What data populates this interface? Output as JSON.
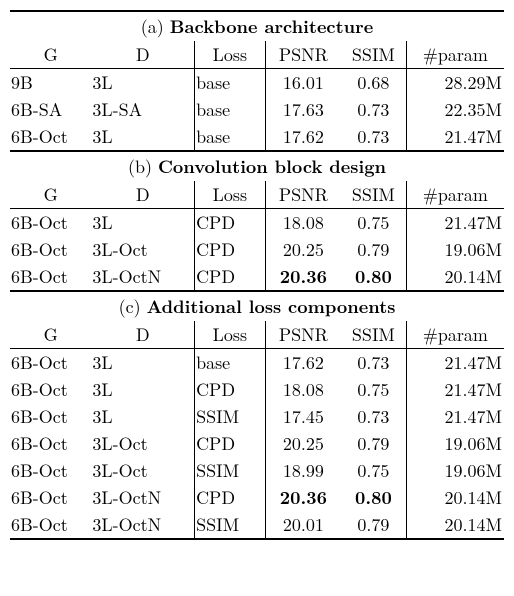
{
  "sections": {
    "a": {
      "label": "(a)",
      "title": "Backbone architecture"
    },
    "b": {
      "label": "(b)",
      "title": "Convolution block design"
    },
    "c": {
      "label": "(c)",
      "title": "Additional loss components"
    }
  },
  "headers": {
    "g": "G",
    "d": "D",
    "loss": "Loss",
    "psnr": "PSNR",
    "ssim": "SSIM",
    "param": "#param"
  },
  "rows_a": [
    {
      "g": "9B",
      "d": "3L",
      "loss": "base",
      "psnr": "16.01",
      "ssim": "0.68",
      "param": "28.29M"
    },
    {
      "g": "6B-SA",
      "d": "3L-SA",
      "loss": "base",
      "psnr": "17.63",
      "ssim": "0.73",
      "param": "22.35M"
    },
    {
      "g": "6B-Oct",
      "d": "3L",
      "loss": "base",
      "psnr": "17.62",
      "ssim": "0.73",
      "param": "21.47M"
    }
  ],
  "rows_b": [
    {
      "g": "6B-Oct",
      "d": "3L",
      "loss": "CPD",
      "psnr": "18.08",
      "ssim": "0.75",
      "param": "21.47M"
    },
    {
      "g": "6B-Oct",
      "d": "3L-Oct",
      "loss": "CPD",
      "psnr": "20.25",
      "ssim": "0.79",
      "param": "19.06M"
    },
    {
      "g": "6B-Oct",
      "d": "3L-OctN",
      "loss": "CPD",
      "psnr": "20.36",
      "ssim": "0.80",
      "param": "20.14M",
      "bold": true
    }
  ],
  "rows_c": [
    {
      "g": "6B-Oct",
      "d": "3L",
      "loss": "base",
      "psnr": "17.62",
      "ssim": "0.73",
      "param": "21.47M"
    },
    {
      "g": "6B-Oct",
      "d": "3L",
      "loss": "CPD",
      "psnr": "18.08",
      "ssim": "0.75",
      "param": "21.47M"
    },
    {
      "g": "6B-Oct",
      "d": "3L",
      "loss": "SSIM",
      "psnr": "17.45",
      "ssim": "0.73",
      "param": "21.47M"
    },
    {
      "g": "6B-Oct",
      "d": "3L-Oct",
      "loss": "CPD",
      "psnr": "20.25",
      "ssim": "0.79",
      "param": "19.06M"
    },
    {
      "g": "6B-Oct",
      "d": "3L-Oct",
      "loss": "SSIM",
      "psnr": "18.99",
      "ssim": "0.75",
      "param": "19.06M"
    },
    {
      "g": "6B-Oct",
      "d": "3L-OctN",
      "loss": "CPD",
      "psnr": "20.36",
      "ssim": "0.80",
      "param": "20.14M",
      "bold": true
    },
    {
      "g": "6B-Oct",
      "d": "3L-OctN",
      "loss": "SSIM",
      "psnr": "20.01",
      "ssim": "0.79",
      "param": "20.14M"
    }
  ]
}
